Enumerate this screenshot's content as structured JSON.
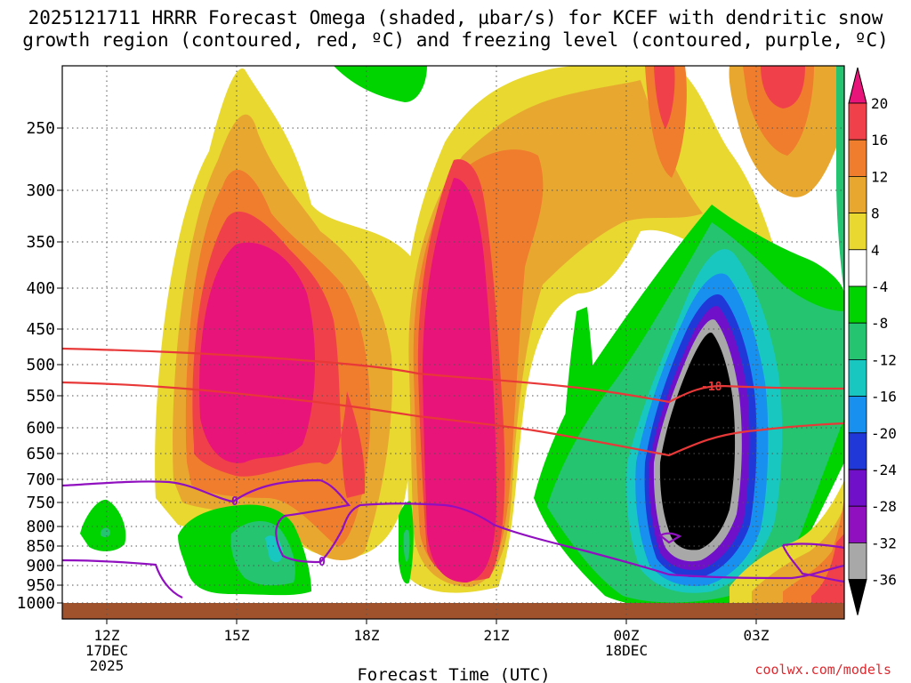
{
  "title": {
    "line1": "2025121711 HRRR Forecast Omega (shaded, µbar/s) for KCEF with dendritic snow",
    "line2": "growth region (contoured, red, ºC) and freezing level (contoured, purple, ºC)"
  },
  "credit": "coolwx.com/models",
  "chart_data": {
    "type": "heatmap",
    "xlabel": "Forecast Time (UTC)",
    "ylabel": "",
    "x_ticks": [
      {
        "label": "12Z",
        "sub": [
          "17DEC",
          "2025"
        ],
        "hour": 0
      },
      {
        "label": "15Z",
        "sub": [],
        "hour": 3
      },
      {
        "label": "18Z",
        "sub": [],
        "hour": 6
      },
      {
        "label": "21Z",
        "sub": [],
        "hour": 9
      },
      {
        "label": "00Z",
        "sub": [
          "18DEC"
        ],
        "hour": 12
      },
      {
        "label": "03Z",
        "sub": [],
        "hour": 15
      }
    ],
    "xlim_hours": [
      -1,
      17
    ],
    "y_scale": "pressure (hPa), decreasing upward",
    "y_ticks": [
      250,
      300,
      350,
      400,
      450,
      500,
      550,
      600,
      650,
      700,
      750,
      800,
      850,
      900,
      950,
      1000
    ],
    "grid": "dotted",
    "colorbar": {
      "labels": [
        "20",
        "16",
        "12",
        "8",
        "4",
        "-4",
        "-8",
        "-12",
        "-16",
        "-20",
        "-24",
        "-28",
        "-32",
        "-36"
      ],
      "colors": [
        "#e8147a",
        "#f0414a",
        "#f07c2e",
        "#e8a830",
        "#e8d830",
        "#ffffff",
        "#00d400",
        "#24c470",
        "#18c8c0",
        "#1890f0",
        "#2038d8",
        "#7010c8",
        "#9010c0",
        "#a8a8a8",
        "#000000"
      ]
    },
    "contour_labels": {
      "dgz_red": "-18",
      "freezing_purple": "0"
    },
    "features": [
      {
        "kind": "upward_motion_max",
        "hour_center": 3,
        "p_range": [
          350,
          700
        ],
        "max_ubar_s": 20
      },
      {
        "kind": "upward_motion_max",
        "hour_center": 8,
        "p_range": [
          280,
          950
        ],
        "max_ubar_s": 20
      },
      {
        "kind": "downward_motion_max",
        "hour_center": 13.5,
        "p_range": [
          400,
          950
        ],
        "min_ubar_s": -36
      }
    ]
  }
}
